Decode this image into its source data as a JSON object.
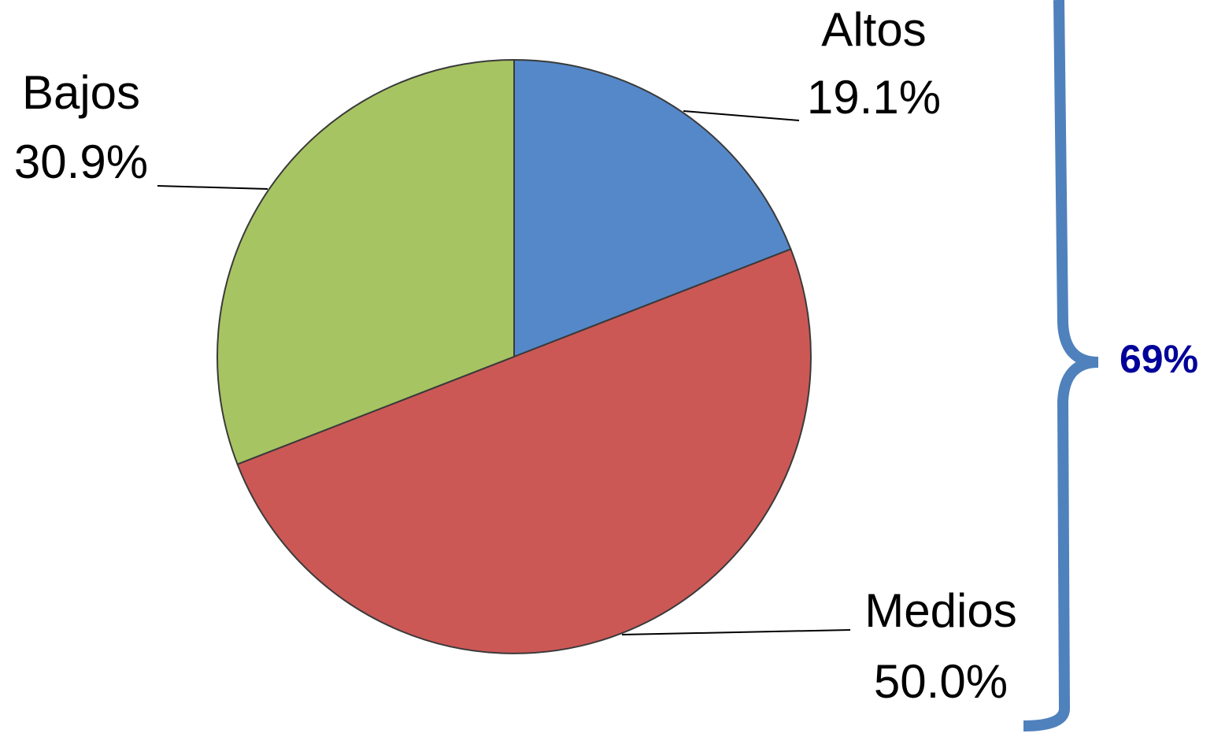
{
  "chart_data": {
    "type": "pie",
    "categories": [
      "Altos",
      "Medios",
      "Bajos"
    ],
    "values": [
      19.1,
      50.0,
      30.9
    ],
    "value_labels": [
      "19.1%",
      "50.0%",
      "30.9%"
    ],
    "colors": [
      "#5588c8",
      "#cc5856",
      "#a7c462"
    ],
    "annotation": "69%"
  }
}
